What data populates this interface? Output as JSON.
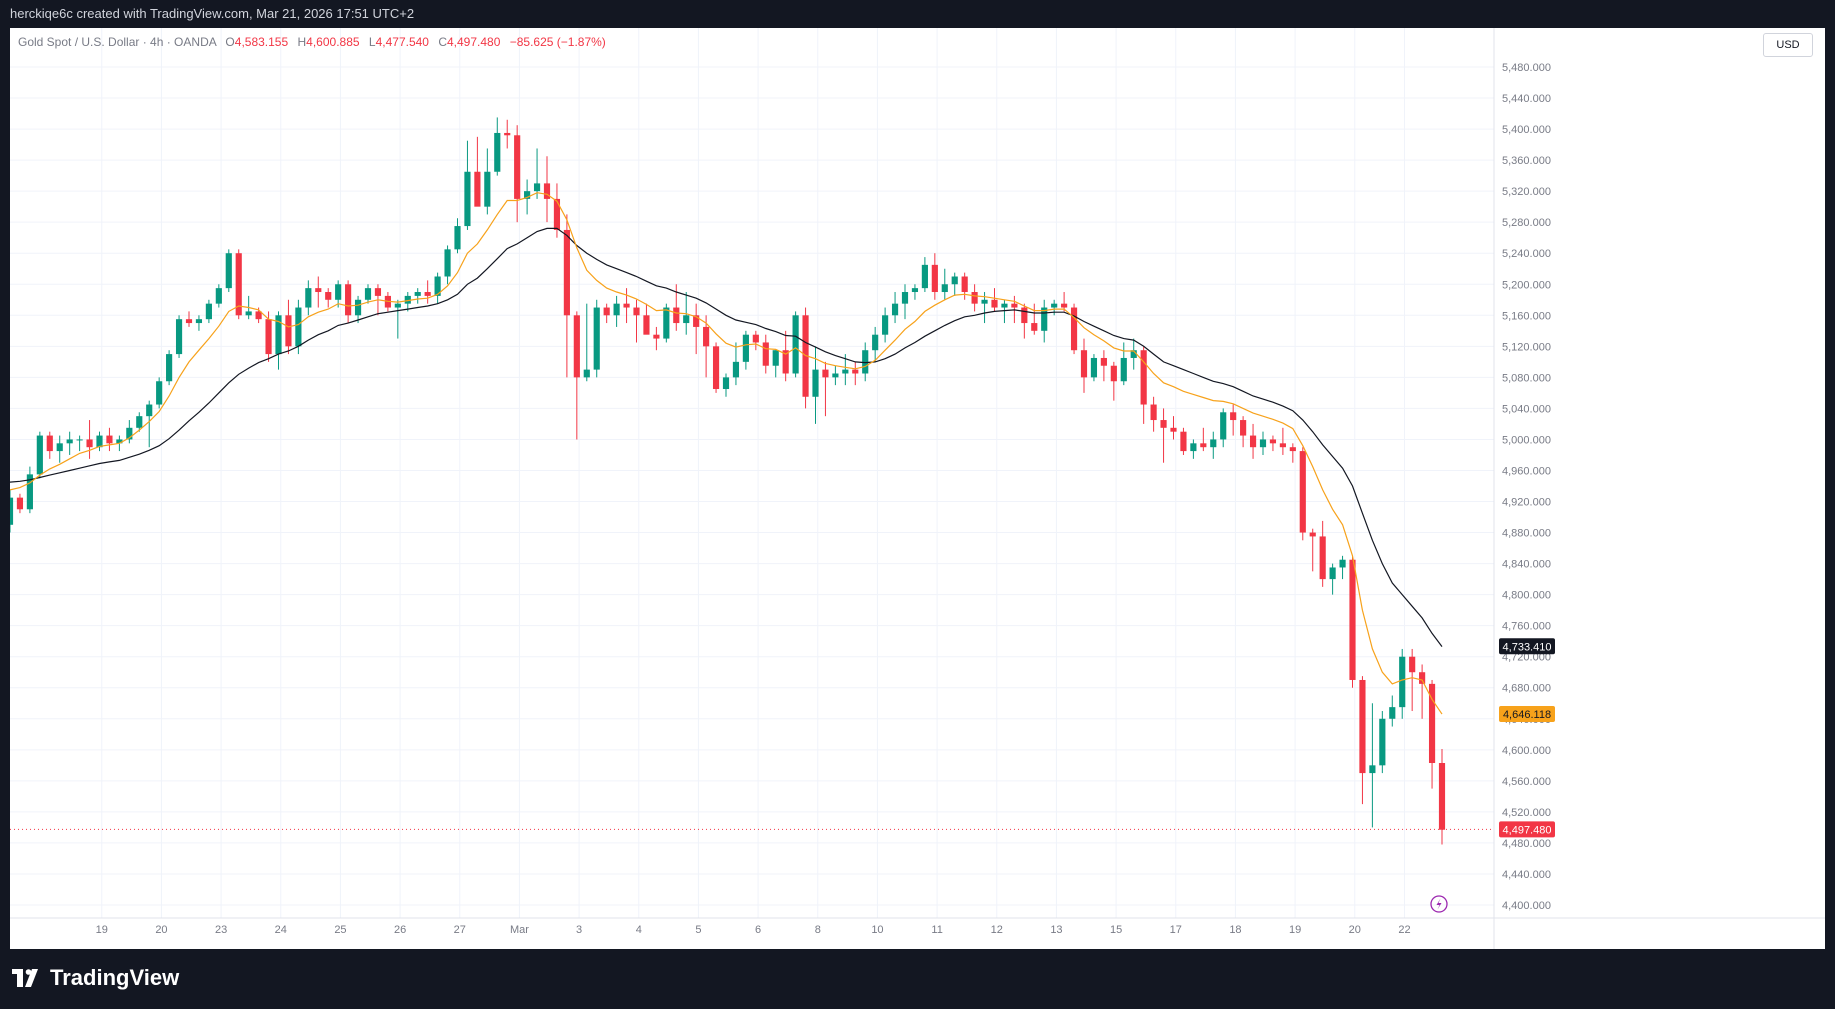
{
  "header": {
    "attribution": "herckiqe6c created with TradingView.com, Mar 21, 2026 17:51 UTC+2"
  },
  "legend": {
    "symbol": "Gold Spot / U.S. Dollar · 4h · OANDA",
    "open_label": "O",
    "open": "4,583.155",
    "high_label": "H",
    "high": "4,600.885",
    "low_label": "L",
    "low": "4,477.540",
    "close_label": "C",
    "close": "4,497.480",
    "change": "−85.625 (−1.87%)"
  },
  "currency_label": "USD",
  "brand": {
    "name": "TradingView"
  },
  "colors": {
    "up": "#089981",
    "down": "#f23645",
    "ema_fast": "#f7a21b",
    "ema_slow": "#131722",
    "grid": "#f0f3fa",
    "axis_text": "#787b86"
  },
  "chart_data": {
    "type": "candlestick",
    "yticks": [
      "5,480.000",
      "5,440.000",
      "5,400.000",
      "5,360.000",
      "5,320.000",
      "5,280.000",
      "5,240.000",
      "5,200.000",
      "5,160.000",
      "5,120.000",
      "5,080.000",
      "5,040.000",
      "5,000.000",
      "4,960.000",
      "4,920.000",
      "4,880.000",
      "4,840.000",
      "4,800.000",
      "4,760.000",
      "4,720.000",
      "4,680.000",
      "4,640.000",
      "4,600.000",
      "4,560.000",
      "4,520.000",
      "4,480.000",
      "4,440.000",
      "4,400.000"
    ],
    "ylim": [
      4378,
      5500
    ],
    "xticks": [
      {
        "label": "19",
        "i": 4
      },
      {
        "label": "20",
        "i": 10
      },
      {
        "label": "23",
        "i": 16
      },
      {
        "label": "24",
        "i": 22
      },
      {
        "label": "25",
        "i": 28
      },
      {
        "label": "26",
        "i": 34
      },
      {
        "label": "27",
        "i": 40
      },
      {
        "label": "Mar",
        "i": 46
      },
      {
        "label": "3",
        "i": 52
      },
      {
        "label": "4",
        "i": 58
      },
      {
        "label": "5",
        "i": 64
      },
      {
        "label": "6",
        "i": 70
      },
      {
        "label": "8",
        "i": 76
      },
      {
        "label": "10",
        "i": 82
      },
      {
        "label": "11",
        "i": 88
      },
      {
        "label": "12",
        "i": 94
      },
      {
        "label": "13",
        "i": 100
      },
      {
        "label": "15",
        "i": 106
      },
      {
        "label": "17",
        "i": 112
      },
      {
        "label": "18",
        "i": 118
      },
      {
        "label": "19",
        "i": 124
      },
      {
        "label": "20",
        "i": 130
      },
      {
        "label": "22",
        "i": 135
      }
    ],
    "price_labels": {
      "ema_slow": "4,733.410",
      "ema_fast": "4,646.118",
      "last": "4,497.480"
    },
    "last_price": 4497.48,
    "candles": [
      [
        4890,
        4935,
        4880,
        4925
      ],
      [
        4925,
        4930,
        4905,
        4910
      ],
      [
        4910,
        4965,
        4905,
        4955
      ],
      [
        4955,
        5010,
        4950,
        5005
      ],
      [
        5005,
        5010,
        4975,
        4985
      ],
      [
        4985,
        5005,
        4970,
        4995
      ],
      [
        4995,
        5010,
        4980,
        5000
      ],
      [
        5000,
        5005,
        4985,
        5000
      ],
      [
        5000,
        5025,
        4975,
        4990
      ],
      [
        4990,
        5010,
        4985,
        5005
      ],
      [
        5005,
        5015,
        4985,
        4995
      ],
      [
        4995,
        5005,
        4985,
        5000
      ],
      [
        5000,
        5025,
        4995,
        5015
      ],
      [
        5015,
        5035,
        5010,
        5030
      ],
      [
        5030,
        5050,
        4990,
        5045
      ],
      [
        5045,
        5080,
        5040,
        5075
      ],
      [
        5075,
        5115,
        5070,
        5110
      ],
      [
        5110,
        5160,
        5105,
        5155
      ],
      [
        5155,
        5165,
        5145,
        5150
      ],
      [
        5150,
        5160,
        5140,
        5155
      ],
      [
        5155,
        5180,
        5150,
        5175
      ],
      [
        5175,
        5200,
        5170,
        5195
      ],
      [
        5195,
        5245,
        5190,
        5240
      ],
      [
        5240,
        5245,
        5155,
        5160
      ],
      [
        5160,
        5185,
        5155,
        5165
      ],
      [
        5165,
        5170,
        5150,
        5155
      ],
      [
        5155,
        5165,
        5100,
        5110
      ],
      [
        5110,
        5165,
        5090,
        5160
      ],
      [
        5160,
        5180,
        5110,
        5120
      ],
      [
        5120,
        5180,
        5110,
        5170
      ],
      [
        5170,
        5205,
        5160,
        5195
      ],
      [
        5195,
        5210,
        5170,
        5190
      ],
      [
        5190,
        5195,
        5170,
        5180
      ],
      [
        5180,
        5205,
        5170,
        5200
      ],
      [
        5200,
        5205,
        5150,
        5160
      ],
      [
        5160,
        5185,
        5150,
        5180
      ],
      [
        5180,
        5200,
        5175,
        5195
      ],
      [
        5195,
        5200,
        5160,
        5185
      ],
      [
        5185,
        5190,
        5165,
        5170
      ],
      [
        5170,
        5180,
        5130,
        5175
      ],
      [
        5175,
        5190,
        5165,
        5185
      ],
      [
        5185,
        5195,
        5175,
        5190
      ],
      [
        5190,
        5205,
        5175,
        5185
      ],
      [
        5185,
        5215,
        5175,
        5210
      ],
      [
        5210,
        5250,
        5200,
        5245
      ],
      [
        5245,
        5285,
        5240,
        5275
      ],
      [
        5275,
        5385,
        5270,
        5345
      ],
      [
        5345,
        5390,
        5310,
        5300
      ],
      [
        5300,
        5375,
        5290,
        5345
      ],
      [
        5345,
        5415,
        5340,
        5395
      ],
      [
        5395,
        5412,
        5375,
        5392
      ],
      [
        5392,
        5405,
        5280,
        5310
      ],
      [
        5310,
        5335,
        5290,
        5320
      ],
      [
        5320,
        5375,
        5310,
        5330
      ],
      [
        5330,
        5365,
        5280,
        5310
      ],
      [
        5310,
        5330,
        5260,
        5270
      ],
      [
        5270,
        5290,
        5080,
        5160
      ],
      [
        5160,
        5165,
        5000,
        5080
      ],
      [
        5080,
        5175,
        5075,
        5090
      ],
      [
        5090,
        5180,
        5080,
        5170
      ],
      [
        5170,
        5175,
        5150,
        5160
      ],
      [
        5160,
        5185,
        5145,
        5175
      ],
      [
        5175,
        5195,
        5150,
        5170
      ],
      [
        5170,
        5180,
        5125,
        5160
      ],
      [
        5160,
        5175,
        5140,
        5135
      ],
      [
        5135,
        5145,
        5115,
        5130
      ],
      [
        5130,
        5175,
        5125,
        5170
      ],
      [
        5170,
        5200,
        5140,
        5150
      ],
      [
        5150,
        5190,
        5135,
        5160
      ],
      [
        5160,
        5175,
        5110,
        5145
      ],
      [
        5145,
        5160,
        5080,
        5120
      ],
      [
        5120,
        5125,
        5060,
        5065
      ],
      [
        5065,
        5085,
        5055,
        5080
      ],
      [
        5080,
        5125,
        5070,
        5100
      ],
      [
        5100,
        5140,
        5090,
        5135
      ],
      [
        5135,
        5140,
        5115,
        5125
      ],
      [
        5125,
        5135,
        5085,
        5095
      ],
      [
        5095,
        5115,
        5080,
        5115
      ],
      [
        5115,
        5140,
        5075,
        5085
      ],
      [
        5085,
        5165,
        5080,
        5160
      ],
      [
        5160,
        5170,
        5040,
        5055
      ],
      [
        5055,
        5120,
        5020,
        5090
      ],
      [
        5090,
        5100,
        5030,
        5080
      ],
      [
        5080,
        5095,
        5070,
        5085
      ],
      [
        5085,
        5110,
        5070,
        5090
      ],
      [
        5090,
        5100,
        5070,
        5085
      ],
      [
        5085,
        5125,
        5075,
        5115
      ],
      [
        5115,
        5145,
        5100,
        5135
      ],
      [
        5135,
        5170,
        5125,
        5160
      ],
      [
        5160,
        5190,
        5150,
        5175
      ],
      [
        5175,
        5200,
        5155,
        5190
      ],
      [
        5190,
        5200,
        5180,
        5195
      ],
      [
        5195,
        5235,
        5190,
        5225
      ],
      [
        5225,
        5240,
        5180,
        5190
      ],
      [
        5190,
        5220,
        5180,
        5200
      ],
      [
        5200,
        5215,
        5185,
        5210
      ],
      [
        5210,
        5215,
        5180,
        5190
      ],
      [
        5190,
        5200,
        5165,
        5175
      ],
      [
        5175,
        5190,
        5150,
        5180
      ],
      [
        5180,
        5195,
        5165,
        5170
      ],
      [
        5170,
        5180,
        5150,
        5175
      ],
      [
        5175,
        5185,
        5150,
        5170
      ],
      [
        5170,
        5175,
        5130,
        5150
      ],
      [
        5150,
        5175,
        5135,
        5140
      ],
      [
        5140,
        5180,
        5125,
        5170
      ],
      [
        5170,
        5180,
        5160,
        5175
      ],
      [
        5175,
        5190,
        5165,
        5170
      ],
      [
        5170,
        5175,
        5110,
        5115
      ],
      [
        5115,
        5130,
        5060,
        5080
      ],
      [
        5080,
        5110,
        5075,
        5105
      ],
      [
        5105,
        5115,
        5075,
        5095
      ],
      [
        5095,
        5100,
        5050,
        5075
      ],
      [
        5075,
        5125,
        5070,
        5105
      ],
      [
        5105,
        5130,
        5090,
        5115
      ],
      [
        5115,
        5120,
        5020,
        5045
      ],
      [
        5045,
        5055,
        5010,
        5025
      ],
      [
        5025,
        5040,
        4970,
        5015
      ]
    ],
    "ema_fast": [
      4935,
      4938,
      4944,
      4954,
      4962,
      4968,
      4975,
      4982,
      4986,
      4991,
      4993,
      4995,
      5002,
      5012,
      5023,
      5036,
      5056,
      5080,
      5100,
      5115,
      5130,
      5146,
      5165,
      5172,
      5170,
      5167,
      5155,
      5152,
      5145,
      5148,
      5158,
      5164,
      5168,
      5175,
      5172,
      5173,
      5177,
      5180,
      5178,
      5177,
      5179,
      5181,
      5182,
      5187,
      5198,
      5215,
      5240,
      5252,
      5270,
      5290,
      5308,
      5308,
      5312,
      5318,
      5316,
      5307,
      5283,
      5247,
      5218,
      5205,
      5195,
      5190,
      5186,
      5181,
      5174,
      5166,
      5167,
      5163,
      5162,
      5158,
      5150,
      5136,
      5124,
      5119,
      5122,
      5123,
      5117,
      5116,
      5110,
      5118,
      5108,
      5104,
      5098,
      5095,
      5093,
      5091,
      5094,
      5102,
      5115,
      5128,
      5142,
      5152,
      5165,
      5173,
      5180,
      5186,
      5187,
      5185,
      5184,
      5182,
      5180,
      5178,
      5172,
      5166,
      5166,
      5168,
      5168,
      5157,
      5144,
      5135,
      5127,
      5118,
      5114,
      5114,
      5100,
      5085,
      5073
    ],
    "ema_slow": [
      4945,
      4946,
      4948,
      4951,
      4954,
      4957,
      4960,
      4963,
      4966,
      4969,
      4971,
      4973,
      4977,
      4981,
      4986,
      4992,
      5001,
      5012,
      5024,
      5035,
      5047,
      5060,
      5073,
      5084,
      5092,
      5099,
      5104,
      5110,
      5114,
      5120,
      5128,
      5135,
      5140,
      5147,
      5150,
      5154,
      5158,
      5162,
      5164,
      5166,
      5168,
      5170,
      5172,
      5175,
      5180,
      5187,
      5200,
      5208,
      5220,
      5233,
      5246,
      5252,
      5260,
      5268,
      5272,
      5272,
      5263,
      5250,
      5240,
      5232,
      5225,
      5220,
      5215,
      5210,
      5204,
      5198,
      5195,
      5190,
      5186,
      5182,
      5176,
      5168,
      5160,
      5154,
      5151,
      5148,
      5143,
      5139,
      5134,
      5133,
      5125,
      5119,
      5113,
      5108,
      5104,
      5100,
      5099,
      5100,
      5104,
      5110,
      5118,
      5125,
      5133,
      5140,
      5147,
      5153,
      5158,
      5160,
      5163,
      5165,
      5166,
      5167,
      5165,
      5163,
      5163,
      5164,
      5164,
      5159,
      5152,
      5146,
      5140,
      5134,
      5130,
      5128,
      5120,
      5110,
      5100
    ],
    "tail_candles": [
      [
        5015,
        5030,
        5000,
        5010
      ],
      [
        5010,
        5015,
        4980,
        4985
      ],
      [
        4985,
        5000,
        4975,
        4995
      ],
      [
        4995,
        5015,
        4985,
        4990
      ],
      [
        4990,
        5010,
        4975,
        5000
      ],
      [
        5000,
        5040,
        4990,
        5035
      ],
      [
        5035,
        5045,
        5005,
        5025
      ],
      [
        5025,
        5030,
        4990,
        5005
      ],
      [
        5005,
        5020,
        4975,
        4990
      ],
      [
        4990,
        5010,
        4980,
        5000
      ],
      [
        5000,
        5005,
        4985,
        4995
      ],
      [
        4995,
        5015,
        4980,
        4990
      ],
      [
        4990,
        4995,
        4970,
        4985
      ],
      [
        4985,
        4990,
        4870,
        4880
      ],
      [
        4880,
        4885,
        4830,
        4875
      ],
      [
        4875,
        4895,
        4810,
        4820
      ],
      [
        4820,
        4840,
        4800,
        4835
      ],
      [
        4835,
        4850,
        4820,
        4845
      ],
      [
        4845,
        4850,
        4680,
        4690
      ],
      [
        4690,
        4695,
        4530,
        4570
      ],
      [
        4570,
        4660,
        4500,
        4580
      ],
      [
        4580,
        4650,
        4570,
        4640
      ],
      [
        4640,
        4670,
        4630,
        4655
      ],
      [
        4655,
        4730,
        4640,
        4720
      ],
      [
        4720,
        4730,
        4650,
        4700
      ],
      [
        4700,
        4710,
        4640,
        4685
      ],
      [
        4685,
        4690,
        4550,
        4583
      ],
      [
        4583,
        4601,
        4478,
        4497
      ]
    ],
    "tail_ema_fast": [
      5068,
      5062,
      5058,
      5054,
      5050,
      5049,
      5046,
      5040,
      5034,
      5030,
      5026,
      5021,
      5014,
      4992,
      4965,
      4935,
      4910,
      4890,
      4850,
      4780,
      4730,
      4700,
      4685,
      4690,
      4693,
      4690,
      4665,
      4646
    ],
    "tail_ema_slow": [
      5095,
      5090,
      5085,
      5080,
      5075,
      5072,
      5068,
      5062,
      5056,
      5052,
      5048,
      5043,
      5037,
      5025,
      5010,
      4993,
      4978,
      4963,
      4940,
      4905,
      4870,
      4840,
      4815,
      4800,
      4785,
      4770,
      4750,
      4733
    ]
  }
}
